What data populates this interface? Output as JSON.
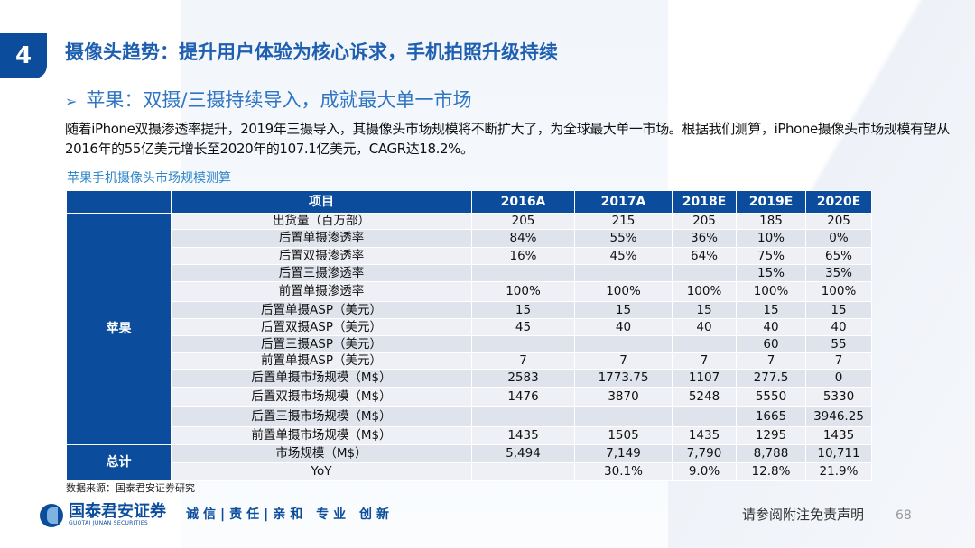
{
  "section_number": "4",
  "title": "摄像头趋势：提升用户体验为核心诉求，手机拍照升级持续",
  "subtitle": "苹果：双摄/三摄持续导入，成就最大单一市场",
  "paragraph": "随着iPhone双摄渗透率提升，2019年三摄导入，其摄像头市场规模将不断扩大了，为全球最大单一市场。根据我们测算，iPhone摄像头市场规模有望从2016年的55亿美元增长至2020年的107.1亿美元，CAGR达18.2%。",
  "table": {
    "caption": "苹果手机摄像头市场规模测算",
    "headers": [
      "项目",
      "2016A",
      "2017A",
      "2018E",
      "2019E",
      "2020E"
    ],
    "groups": [
      {
        "label": "苹果",
        "rows": [
          [
            "出货量（百万部）",
            "205",
            "215",
            "205",
            "185",
            "205"
          ],
          [
            "后置单摄渗透率",
            "84%",
            "55%",
            "36%",
            "10%",
            "0%"
          ],
          [
            "后置双摄渗透率",
            "16%",
            "45%",
            "64%",
            "75%",
            "65%"
          ],
          [
            "后置三摄渗透率",
            "",
            "",
            "",
            "15%",
            "35%"
          ],
          [
            "前置单摄渗透率",
            "100%",
            "100%",
            "100%",
            "100%",
            "100%"
          ],
          [
            "后置单摄ASP（美元）",
            "15",
            "15",
            "15",
            "15",
            "15"
          ],
          [
            "后置双摄ASP（美元）",
            "45",
            "40",
            "40",
            "40",
            "40"
          ],
          [
            "后置三摄ASP（美元）",
            "",
            "",
            "",
            "60",
            "55"
          ],
          [
            "前置单摄ASP（美元）",
            "7",
            "7",
            "7",
            "7",
            "7"
          ],
          [
            "后置单摄市场规模（M$）",
            "2583",
            "1773.75",
            "1107",
            "277.5",
            "0"
          ],
          [
            "后置双摄市场规模（M$）",
            "1476",
            "3870",
            "5248",
            "5550",
            "5330"
          ],
          [
            "后置三摄市场规模（M$）",
            "",
            "",
            "",
            "1665",
            "3946.25"
          ],
          [
            "前置单摄市场规模（M$）",
            "1435",
            "1505",
            "1435",
            "1295",
            "1435"
          ]
        ]
      },
      {
        "label": "总计",
        "rows": [
          [
            "市场规模（M$）",
            "5,494",
            "7,149",
            "7,790",
            "8,788",
            "10,711"
          ],
          [
            "YoY",
            "",
            "30.1%",
            "9.0%",
            "12.8%",
            "21.9%"
          ]
        ]
      }
    ]
  },
  "source": "数据来源：国泰君安证券研究",
  "logo": {
    "cn": "国泰君安证券",
    "en": "GUOTAI JUNAN SECURITIES"
  },
  "slogan": "诚信|责任|亲和 专业 创新",
  "disclaimer": "请参阅附注免责声明",
  "page_number": "68",
  "colors": {
    "brand": "#0b4d9c",
    "accent": "#2f75c3"
  }
}
